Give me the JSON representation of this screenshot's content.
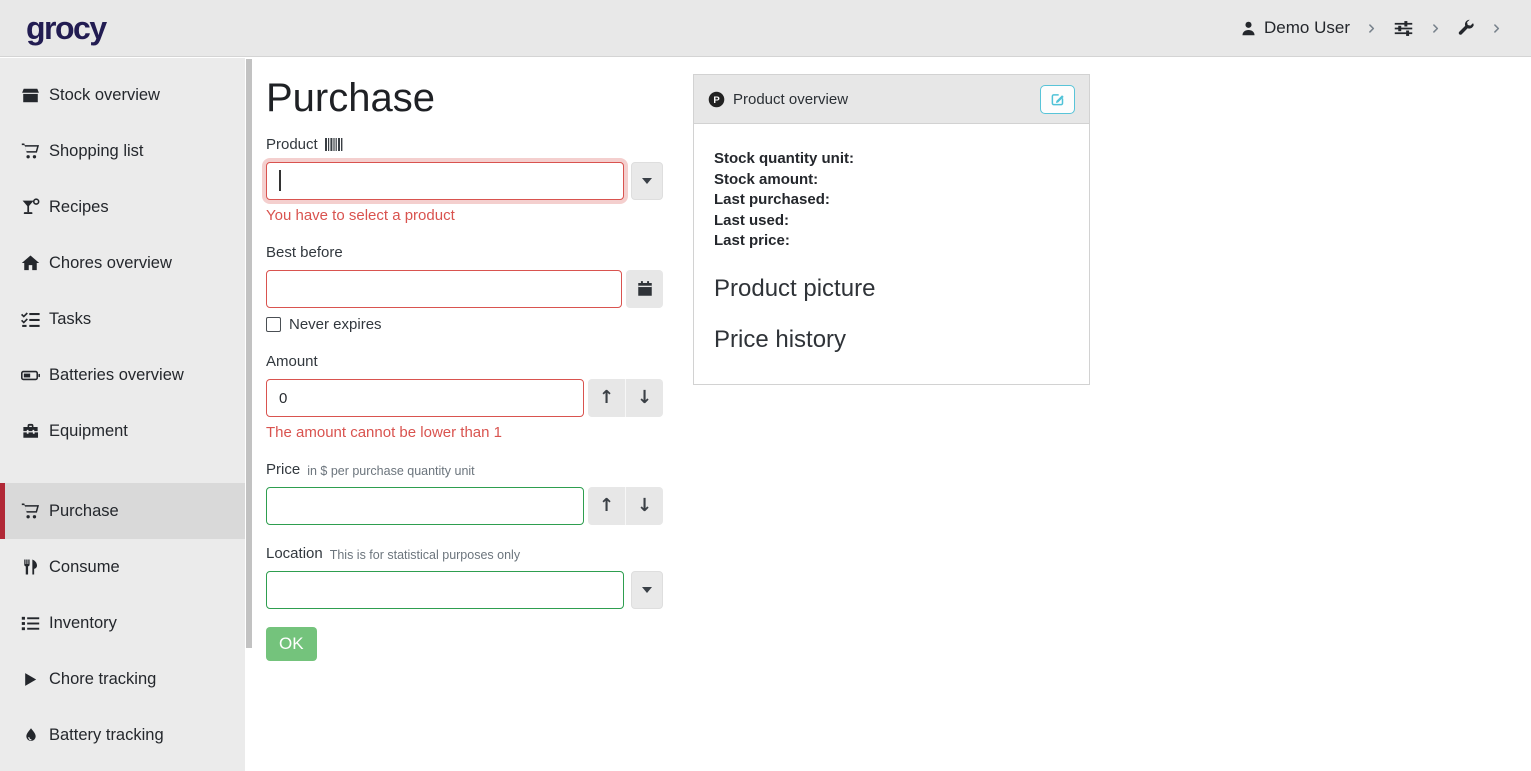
{
  "topbar": {
    "logo": "grocy",
    "user_label": "Demo User"
  },
  "sidebar": {
    "items": [
      {
        "label": "Stock overview",
        "icon": "box-icon",
        "active": false
      },
      {
        "label": "Shopping list",
        "icon": "cart-icon",
        "active": false
      },
      {
        "label": "Recipes",
        "icon": "cocktail-icon",
        "active": false
      },
      {
        "label": "Chores overview",
        "icon": "home-icon",
        "active": false
      },
      {
        "label": "Tasks",
        "icon": "tasks-icon",
        "active": false
      },
      {
        "label": "Batteries overview",
        "icon": "battery-icon",
        "active": false
      },
      {
        "label": "Equipment",
        "icon": "toolbox-icon",
        "active": false
      },
      {
        "label": "Purchase",
        "icon": "cart-icon",
        "active": true
      },
      {
        "label": "Consume",
        "icon": "utensils-icon",
        "active": false
      },
      {
        "label": "Inventory",
        "icon": "list-icon",
        "active": false
      },
      {
        "label": "Chore tracking",
        "icon": "play-icon",
        "active": false
      },
      {
        "label": "Battery tracking",
        "icon": "droplet-icon",
        "active": false
      }
    ]
  },
  "main": {
    "title": "Purchase",
    "form": {
      "product": {
        "label": "Product",
        "value": "",
        "error": "You have to select a product"
      },
      "best_before": {
        "label": "Best before",
        "value": "",
        "checkbox_label": "Never expires",
        "checked": false
      },
      "amount": {
        "label": "Amount",
        "value": "0",
        "error": "The amount cannot be lower than 1"
      },
      "price": {
        "label": "Price",
        "hint": "in $ per purchase quantity unit",
        "value": ""
      },
      "location": {
        "label": "Location",
        "hint": "This is for statistical purposes only",
        "value": ""
      },
      "ok_label": "OK"
    }
  },
  "overview_card": {
    "title": "Product overview",
    "fields": [
      "Stock quantity unit:",
      "Stock amount:",
      "Last purchased:",
      "Last used:",
      "Last price:"
    ],
    "sections": [
      "Product picture",
      "Price history"
    ]
  },
  "colors": {
    "topbar_bg": "#e8e8e8",
    "sidebar_bg": "#ebebeb",
    "active_item_bg": "#d9d9d9",
    "accent_red": "#b12836",
    "danger": "#d9534f",
    "success_border": "#2e9e4f",
    "button_green": "#74c37c",
    "info_blue": "#58c4d8",
    "logo_navy": "#221c52"
  }
}
